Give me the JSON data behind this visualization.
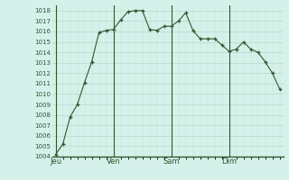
{
  "background_color": "#d6f0ea",
  "grid_color_major": "#b8d8cc",
  "grid_color_minor": "#c8e8dc",
  "line_color": "#2d5a2d",
  "marker_color": "#2d5a2d",
  "axis_color": "#2d5a2d",
  "tick_color": "#2d5a2d",
  "ylim": [
    1004,
    1018.5
  ],
  "ytick_min": 1004,
  "ytick_max": 1018,
  "day_labels": [
    "Jeu",
    "Ven",
    "Sam",
    "Dim"
  ],
  "day_positions": [
    0,
    8,
    16,
    24
  ],
  "x_values": [
    0,
    1,
    2,
    3,
    4,
    5,
    6,
    7,
    8,
    9,
    10,
    11,
    12,
    13,
    14,
    15,
    16,
    17,
    18,
    19,
    20,
    21,
    22,
    23,
    24,
    25,
    26,
    27,
    28,
    29,
    30,
    31
  ],
  "y_values": [
    1004.2,
    1005.2,
    1007.8,
    1009.0,
    1011.1,
    1013.1,
    1015.9,
    1016.1,
    1016.2,
    1017.1,
    1017.9,
    1018.0,
    1018.0,
    1016.2,
    1016.1,
    1016.5,
    1016.5,
    1017.0,
    1017.8,
    1016.1,
    1015.3,
    1015.3,
    1015.3,
    1014.7,
    1014.1,
    1014.3,
    1015.0,
    1014.3,
    1014.0,
    1013.1,
    1012.0,
    1010.5
  ]
}
